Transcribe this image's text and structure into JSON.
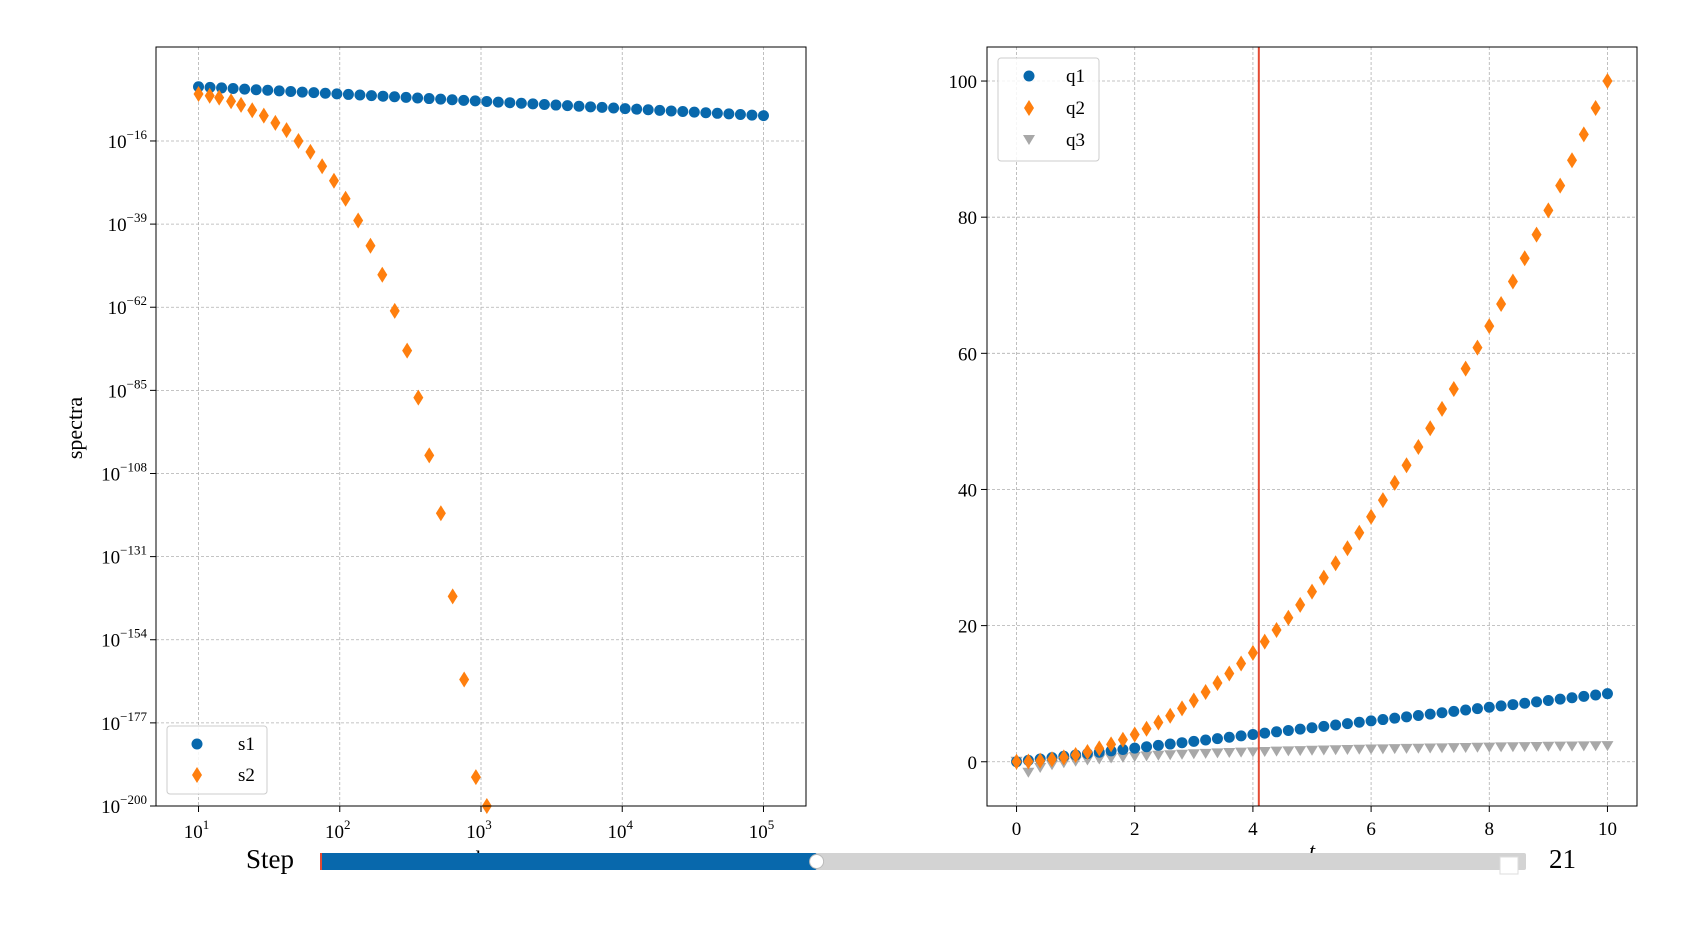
{
  "chart_data": [
    {
      "type": "scatter",
      "title": "",
      "xlabel": "k",
      "ylabel": "spectra",
      "x_scale": "log",
      "y_scale": "log",
      "xlim": [
        5,
        200000
      ],
      "ylim_exponent": [
        -200,
        10
      ],
      "x_ticks": [
        {
          "exp": 1,
          "base": "10",
          "sup": "1"
        },
        {
          "exp": 2,
          "base": "10",
          "sup": "2"
        },
        {
          "exp": 3,
          "base": "10",
          "sup": "3"
        },
        {
          "exp": 4,
          "base": "10",
          "sup": "4"
        },
        {
          "exp": 5,
          "base": "10",
          "sup": "5"
        }
      ],
      "y_ticks": [
        {
          "exp": -16,
          "base": "10",
          "sup": "−16"
        },
        {
          "exp": -39,
          "base": "10",
          "sup": "−39"
        },
        {
          "exp": -62,
          "base": "10",
          "sup": "−62"
        },
        {
          "exp": -85,
          "base": "10",
          "sup": "−85"
        },
        {
          "exp": -108,
          "base": "10",
          "sup": "−108"
        },
        {
          "exp": -131,
          "base": "10",
          "sup": "−131"
        },
        {
          "exp": -154,
          "base": "10",
          "sup": "−154"
        },
        {
          "exp": -177,
          "base": "10",
          "sup": "−177"
        },
        {
          "exp": -200,
          "base": "10",
          "sup": "−200"
        }
      ],
      "grid": true,
      "legend_position": "lower-left",
      "series": [
        {
          "name": "s1",
          "marker": "circle",
          "color": "#0868ac",
          "x_range": [
            10,
            100000
          ],
          "count": 50,
          "y_log10": {
            "start": -1,
            "end": -9
          }
        },
        {
          "name": "s2",
          "marker": "diamond",
          "color": "#ff7f0e",
          "x": [
            10,
            12,
            14,
            17,
            20,
            24,
            29,
            35,
            42,
            51,
            62,
            75,
            91,
            110,
            135,
            165,
            200,
            245,
            300,
            360,
            430,
            520,
            630,
            760,
            920,
            1100
          ],
          "y_log10": [
            -3,
            -3.5,
            -4,
            -5,
            -6,
            -7.5,
            -9,
            -11,
            -13,
            -16,
            -19,
            -23,
            -27,
            -32,
            -38,
            -45,
            -53,
            -63,
            -74,
            -87,
            -103,
            -119,
            -142,
            -165,
            -192,
            -200
          ]
        }
      ]
    },
    {
      "type": "scatter",
      "title": "",
      "xlabel": "t",
      "ylabel": "",
      "xlim": [
        -0.5,
        10.5
      ],
      "ylim": [
        -6.5,
        105
      ],
      "x_ticks": [
        0,
        2,
        4,
        6,
        8,
        10
      ],
      "y_ticks": [
        0,
        20,
        40,
        60,
        80,
        100
      ],
      "grid": true,
      "legend_position": "upper-left",
      "vline": {
        "x": 4.1,
        "color": "#e34a33"
      },
      "series": [
        {
          "name": "q1",
          "marker": "circle",
          "color": "#0868ac",
          "formula": "t",
          "t_range": [
            0,
            10
          ],
          "count": 51
        },
        {
          "name": "q2",
          "marker": "diamond",
          "color": "#ff7f0e",
          "formula": "t^2",
          "t_range": [
            0,
            10
          ],
          "count": 51
        },
        {
          "name": "q3",
          "marker": "triangle-down",
          "color": "#a8a8a8",
          "formula": "log(t)",
          "t_range": [
            0,
            10
          ],
          "count": 51
        }
      ]
    }
  ],
  "slider": {
    "label": "Step",
    "value_text": "21",
    "value": 21,
    "max": 51,
    "fill_color": "#0868ac",
    "track_color": "#d3d3d3"
  }
}
